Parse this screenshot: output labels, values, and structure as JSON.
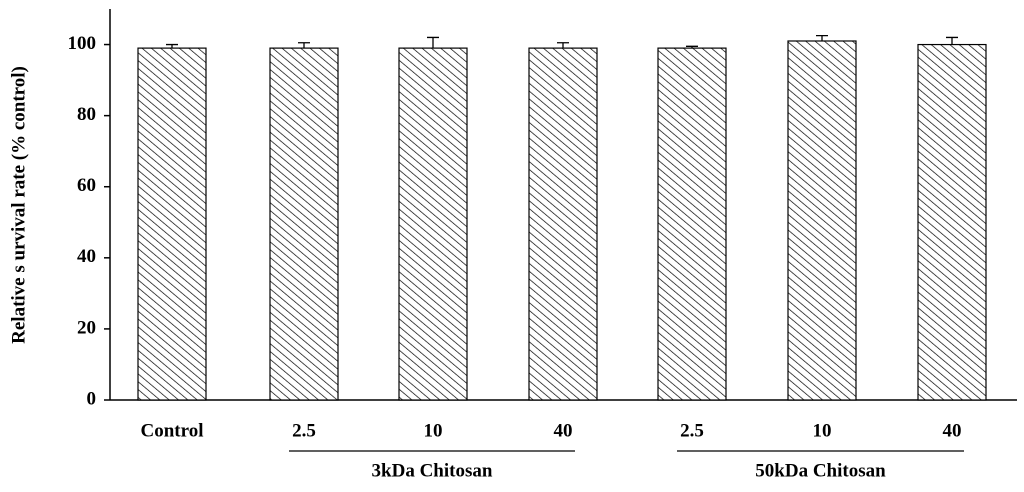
{
  "chart_data": {
    "type": "bar",
    "y_label": "Relative s urvival rate (% control)",
    "categories": [
      "Control",
      "2.5",
      "10",
      "40",
      "2.5",
      "10",
      "40"
    ],
    "values": [
      99,
      99,
      99,
      99,
      99,
      101,
      100
    ],
    "errors": [
      1,
      1.5,
      3,
      1.5,
      0.5,
      1.5,
      2
    ],
    "groups": [
      "3kDa Chitosan",
      "50kDa Chitosan"
    ],
    "color": "#000000",
    "ylim": [
      0,
      110
    ],
    "yticks": [
      0,
      20,
      40,
      60,
      80,
      100
    ]
  }
}
